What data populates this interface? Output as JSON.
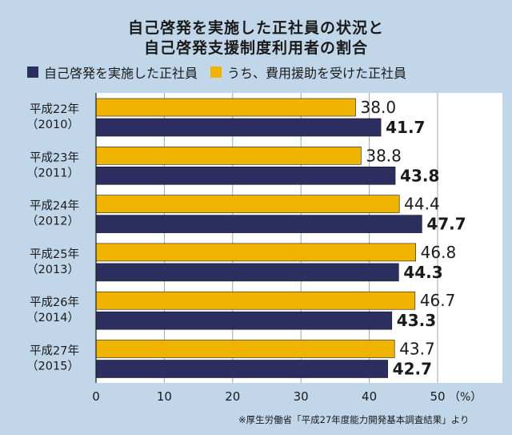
{
  "title_line1": "自己啓発を実施した正社員の状況と",
  "title_line2": "自己啓発支援制度利用者の割合",
  "note": "※厚生労働省「平成27年度能力開発基本調査結果」より",
  "colors": {
    "background": "#c2d6ea",
    "series_self": "#2b2e5f",
    "series_support": "#f0b400"
  },
  "chart_data": {
    "type": "bar",
    "orientation": "horizontal",
    "categories": [
      [
        "平成22年",
        "（2010）"
      ],
      [
        "平成23年",
        "（2011）"
      ],
      [
        "平成24年",
        "（2012）"
      ],
      [
        "平成25年",
        "（2013）"
      ],
      [
        "平成26年",
        "（2014）"
      ],
      [
        "平成27年",
        "（2015）"
      ]
    ],
    "series": [
      {
        "name": "うち、費用援助を受けた正社員",
        "color": "#f0b400",
        "values": [
          38.0,
          38.8,
          44.4,
          46.8,
          46.7,
          43.7
        ]
      },
      {
        "name": "自己啓発を実施した正社員",
        "color": "#2b2e5f",
        "values": [
          41.7,
          43.8,
          47.7,
          44.3,
          43.3,
          42.7
        ]
      }
    ],
    "value_labels": [
      [
        "38.0",
        "38.8",
        "44.4",
        "46.8",
        "46.7",
        "43.7"
      ],
      [
        "41.7",
        "43.8",
        "47.7",
        "44.3",
        "43.3",
        "42.7"
      ]
    ],
    "xlim": [
      0,
      50
    ],
    "xticks": [
      0,
      10,
      20,
      30,
      40,
      50
    ],
    "xunit": "（%）",
    "grid": true,
    "legend_position": "top"
  }
}
